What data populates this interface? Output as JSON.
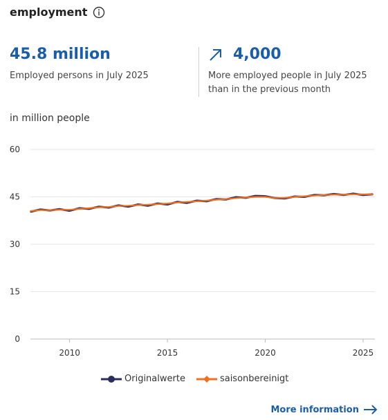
{
  "header": {
    "title": "employment",
    "info_icon": "info-circle-icon"
  },
  "kpi_left": {
    "value": "45.8 million",
    "caption": "Employed persons in July 2025"
  },
  "kpi_right": {
    "trend_icon": "arrow-up-right-icon",
    "value": "4,000",
    "caption": "More employed people in July 2025 than in the previous month"
  },
  "unit_label": "in million people",
  "colors": {
    "accent": "#1a5da8",
    "original": "#2b2d5c",
    "seasonal": "#f07020",
    "grid": "#e6e6e6"
  },
  "chart_data": {
    "type": "line",
    "title": "",
    "xlabel": "",
    "ylabel": "in million people",
    "ylim": [
      0,
      60
    ],
    "yticks": [
      0,
      15,
      30,
      45,
      60
    ],
    "xticks": [
      2010,
      2015,
      2020,
      2025
    ],
    "grid": true,
    "legend_position": "bottom",
    "series": [
      {
        "name": "Originalwerte",
        "x": [
          2008.0,
          2008.5,
          2009.0,
          2009.5,
          2010.0,
          2010.5,
          2011.0,
          2011.5,
          2012.0,
          2012.5,
          2013.0,
          2013.5,
          2014.0,
          2014.5,
          2015.0,
          2015.5,
          2016.0,
          2016.5,
          2017.0,
          2017.5,
          2018.0,
          2018.5,
          2019.0,
          2019.5,
          2020.0,
          2020.5,
          2021.0,
          2021.5,
          2022.0,
          2022.5,
          2023.0,
          2023.5,
          2024.0,
          2024.5,
          2025.0,
          2025.5
        ],
        "values": [
          40.3,
          41.0,
          40.7,
          41.1,
          40.6,
          41.4,
          41.2,
          41.9,
          41.6,
          42.3,
          41.9,
          42.6,
          42.2,
          42.9,
          42.6,
          43.4,
          43.1,
          43.8,
          43.6,
          44.3,
          44.2,
          44.9,
          44.7,
          45.3,
          45.2,
          44.6,
          44.5,
          45.1,
          45.0,
          45.6,
          45.5,
          45.9,
          45.6,
          46.0,
          45.6,
          45.8
        ]
      },
      {
        "name": "saisonbereinigt",
        "x": [
          2008.0,
          2008.5,
          2009.0,
          2009.5,
          2010.0,
          2010.5,
          2011.0,
          2011.5,
          2012.0,
          2012.5,
          2013.0,
          2013.5,
          2014.0,
          2014.5,
          2015.0,
          2015.5,
          2016.0,
          2016.5,
          2017.0,
          2017.5,
          2018.0,
          2018.5,
          2019.0,
          2019.5,
          2020.0,
          2020.5,
          2021.0,
          2021.5,
          2022.0,
          2022.5,
          2023.0,
          2023.5,
          2024.0,
          2024.5,
          2025.0,
          2025.5
        ],
        "values": [
          40.5,
          40.8,
          40.8,
          40.9,
          40.9,
          41.2,
          41.4,
          41.7,
          41.8,
          42.1,
          42.2,
          42.4,
          42.5,
          42.7,
          42.9,
          43.2,
          43.4,
          43.6,
          43.8,
          44.1,
          44.3,
          44.6,
          44.8,
          45.0,
          45.0,
          44.6,
          44.7,
          45.0,
          45.2,
          45.4,
          45.6,
          45.7,
          45.7,
          45.8,
          45.8,
          45.8
        ]
      }
    ]
  },
  "more_link": {
    "label": "More information",
    "icon": "arrow-right-icon"
  }
}
